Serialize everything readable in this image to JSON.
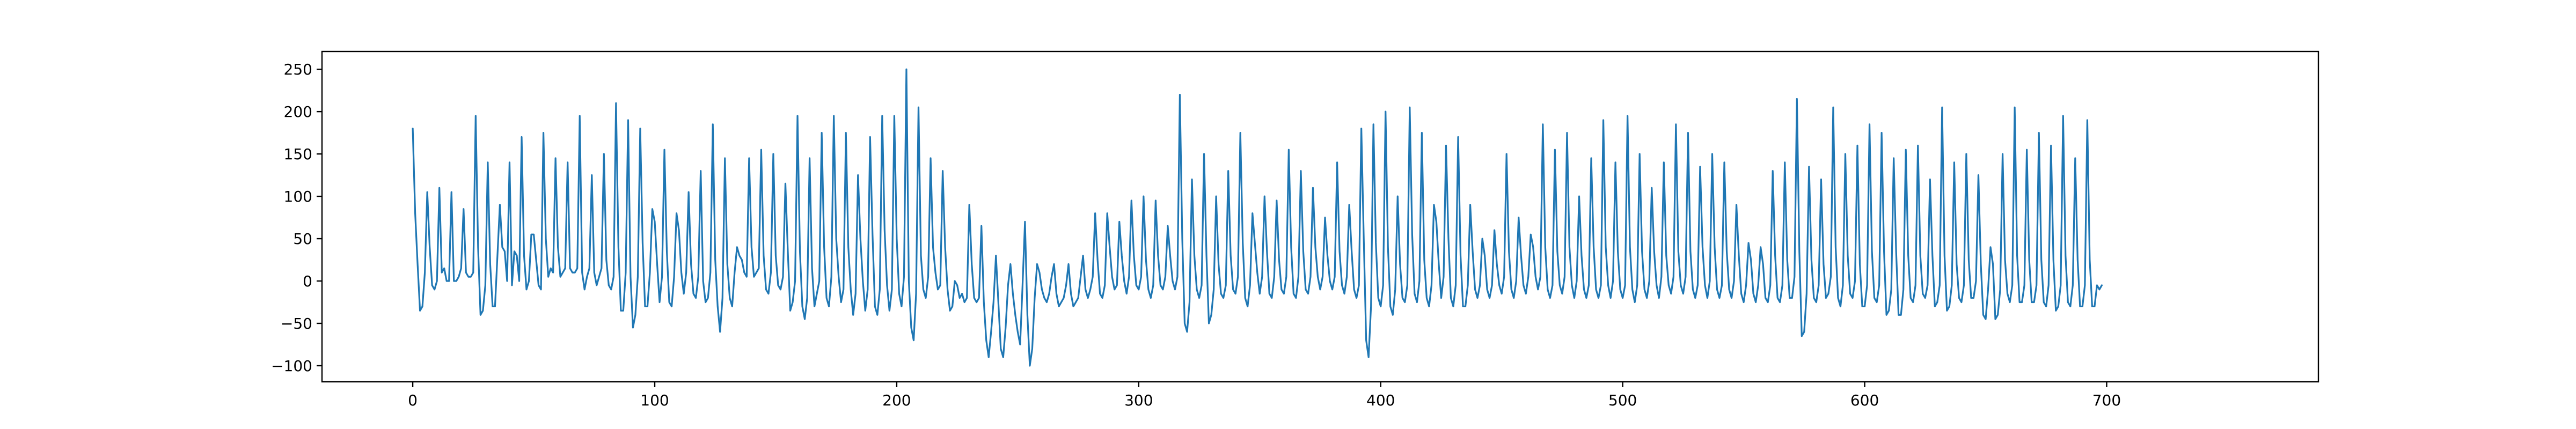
{
  "chart_data": {
    "type": "line",
    "title": "",
    "xlabel": "",
    "ylabel": "",
    "xlim": [
      -37.5,
      787.5
    ],
    "ylim": [
      -119,
      271
    ],
    "xticks": [
      0,
      100,
      200,
      300,
      400,
      500,
      600,
      700
    ],
    "yticks": [
      -100,
      -50,
      0,
      50,
      100,
      150,
      200,
      250
    ],
    "grid": false,
    "legend": "none",
    "series": [
      {
        "color": "#1f77b4",
        "x_start": 0,
        "x_step": 1,
        "y": [
          180,
          80,
          20,
          -35,
          -30,
          10,
          105,
          40,
          -5,
          -10,
          0,
          110,
          10,
          15,
          0,
          0,
          105,
          0,
          0,
          5,
          15,
          85,
          10,
          5,
          5,
          10,
          195,
          40,
          -40,
          -35,
          -5,
          140,
          20,
          -30,
          -30,
          30,
          90,
          40,
          35,
          0,
          140,
          -5,
          35,
          30,
          0,
          170,
          30,
          -10,
          0,
          55,
          55,
          25,
          -5,
          -10,
          175,
          50,
          5,
          15,
          10,
          145,
          40,
          5,
          10,
          15,
          140,
          15,
          10,
          10,
          15,
          195,
          10,
          -10,
          5,
          15,
          125,
          10,
          -5,
          5,
          15,
          150,
          25,
          -5,
          -10,
          5,
          210,
          40,
          -35,
          -35,
          10,
          190,
          5,
          -55,
          -40,
          5,
          180,
          45,
          -30,
          -30,
          10,
          85,
          70,
          20,
          -25,
          5,
          155,
          35,
          -25,
          -30,
          5,
          80,
          60,
          10,
          -15,
          10,
          105,
          20,
          -15,
          -20,
          5,
          130,
          0,
          -25,
          -20,
          10,
          185,
          25,
          -30,
          -60,
          -20,
          145,
          20,
          -20,
          -30,
          10,
          40,
          30,
          25,
          10,
          5,
          145,
          40,
          5,
          10,
          15,
          155,
          30,
          -10,
          -15,
          10,
          150,
          30,
          -5,
          -10,
          5,
          115,
          35,
          -35,
          -25,
          0,
          195,
          35,
          -30,
          -45,
          -20,
          145,
          15,
          -30,
          -15,
          0,
          175,
          40,
          -20,
          -30,
          5,
          195,
          50,
          5,
          -25,
          -10,
          175,
          40,
          -10,
          -40,
          -15,
          125,
          50,
          0,
          -35,
          -10,
          170,
          55,
          -30,
          -40,
          -10,
          195,
          60,
          -5,
          -35,
          -10,
          195,
          50,
          -15,
          -30,
          5,
          250,
          0,
          -55,
          -70,
          -15,
          205,
          30,
          -10,
          -20,
          5,
          145,
          40,
          10,
          -10,
          -5,
          130,
          40,
          -10,
          -35,
          -30,
          0,
          -5,
          -20,
          -15,
          -25,
          -20,
          90,
          20,
          -20,
          -25,
          -20,
          65,
          -25,
          -70,
          -90,
          -60,
          -25,
          30,
          -25,
          -80,
          -90,
          -55,
          -5,
          20,
          -15,
          -40,
          -60,
          -75,
          -5,
          70,
          -40,
          -100,
          -80,
          -20,
          20,
          10,
          -10,
          -20,
          -25,
          -15,
          5,
          20,
          -15,
          -30,
          -25,
          -20,
          -5,
          20,
          -15,
          -30,
          -25,
          -20,
          5,
          30,
          -10,
          -20,
          -10,
          5,
          80,
          25,
          -15,
          -20,
          -5,
          80,
          40,
          5,
          -10,
          -5,
          70,
          30,
          0,
          -15,
          5,
          95,
          30,
          -5,
          -10,
          5,
          100,
          25,
          -10,
          -20,
          -5,
          95,
          30,
          -5,
          -10,
          5,
          65,
          30,
          0,
          -10,
          5,
          220,
          50,
          -50,
          -60,
          -25,
          120,
          30,
          -10,
          -20,
          -5,
          150,
          30,
          -50,
          -40,
          -10,
          100,
          20,
          -15,
          -20,
          -5,
          130,
          30,
          -10,
          -15,
          5,
          175,
          45,
          -20,
          -30,
          -5,
          80,
          45,
          10,
          -15,
          5,
          100,
          35,
          -15,
          -20,
          5,
          95,
          25,
          -10,
          -15,
          5,
          155,
          40,
          -15,
          -20,
          5,
          130,
          35,
          -10,
          -15,
          5,
          110,
          40,
          5,
          -10,
          5,
          75,
          30,
          0,
          -10,
          5,
          140,
          35,
          -5,
          -15,
          5,
          90,
          35,
          -10,
          -20,
          -5,
          180,
          50,
          -70,
          -90,
          -30,
          185,
          45,
          -20,
          -30,
          -5,
          200,
          40,
          -30,
          -40,
          -10,
          100,
          20,
          -20,
          -25,
          -5,
          205,
          55,
          -15,
          -25,
          0,
          175,
          25,
          -20,
          -30,
          -5,
          90,
          70,
          20,
          -20,
          5,
          160,
          50,
          -20,
          -30,
          -5,
          170,
          30,
          -30,
          -30,
          -5,
          90,
          35,
          -10,
          -20,
          -5,
          50,
          30,
          -10,
          -20,
          -5,
          60,
          20,
          -5,
          -15,
          5,
          150,
          35,
          -10,
          -20,
          0,
          75,
          30,
          -5,
          -15,
          5,
          55,
          40,
          5,
          -10,
          5,
          185,
          40,
          -10,
          -20,
          -5,
          155,
          35,
          -5,
          -15,
          5,
          175,
          40,
          -5,
          -20,
          0,
          100,
          30,
          -10,
          -20,
          -5,
          145,
          40,
          -10,
          -20,
          -5,
          190,
          40,
          -5,
          -20,
          0,
          140,
          35,
          -10,
          -20,
          -5,
          195,
          40,
          -10,
          -25,
          -5,
          150,
          35,
          -10,
          -20,
          0,
          110,
          35,
          -5,
          -20,
          5,
          140,
          30,
          -5,
          -15,
          5,
          185,
          35,
          -5,
          -15,
          5,
          175,
          35,
          -10,
          -20,
          -5,
          135,
          40,
          -5,
          -20,
          0,
          150,
          40,
          -10,
          -20,
          -5,
          140,
          35,
          -10,
          -20,
          0,
          90,
          30,
          -15,
          -25,
          -5,
          45,
          25,
          -15,
          -25,
          -5,
          40,
          20,
          -20,
          -25,
          -5,
          130,
          30,
          -20,
          -25,
          -5,
          140,
          25,
          -20,
          -20,
          5,
          215,
          35,
          -65,
          -60,
          -15,
          135,
          25,
          -20,
          -25,
          -5,
          120,
          20,
          -20,
          -15,
          5,
          205,
          40,
          -20,
          -30,
          -5,
          150,
          30,
          -15,
          -20,
          0,
          160,
          20,
          -30,
          -30,
          -5,
          185,
          35,
          -20,
          -25,
          -5,
          175,
          35,
          -40,
          -35,
          -10,
          145,
          35,
          -40,
          -40,
          -10,
          155,
          30,
          -20,
          -25,
          -5,
          160,
          30,
          -15,
          -20,
          -5,
          120,
          30,
          -30,
          -25,
          -5,
          205,
          30,
          -35,
          -30,
          -5,
          140,
          20,
          -20,
          -25,
          -5,
          150,
          25,
          -20,
          -20,
          0,
          125,
          20,
          -40,
          -45,
          -10,
          40,
          20,
          -45,
          -40,
          -10,
          150,
          25,
          -15,
          -25,
          -5,
          205,
          30,
          -25,
          -25,
          -5,
          155,
          25,
          -25,
          -25,
          -5,
          175,
          25,
          -25,
          -30,
          -5,
          160,
          25,
          -35,
          -30,
          -5,
          195,
          30,
          -25,
          -30,
          -5,
          145,
          25,
          -30,
          -30,
          -5,
          190,
          25,
          -30,
          -30,
          -5,
          -10,
          -5
        ]
      }
    ]
  }
}
